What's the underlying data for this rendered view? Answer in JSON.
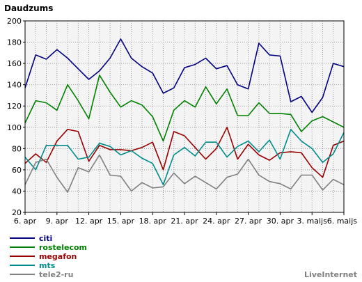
{
  "chart_data": {
    "type": "line",
    "title": "Daudzums",
    "ylim": [
      20,
      200
    ],
    "yticks": [
      20,
      40,
      60,
      80,
      100,
      120,
      140,
      160,
      180,
      200
    ],
    "xlim": [
      0,
      30
    ],
    "xticks": [
      {
        "i": 0,
        "label": "6. apr"
      },
      {
        "i": 3,
        "label": "9. apr"
      },
      {
        "i": 6,
        "label": "12. apr"
      },
      {
        "i": 9,
        "label": "15. apr"
      },
      {
        "i": 12,
        "label": "18. apr"
      },
      {
        "i": 15,
        "label": "21. apr"
      },
      {
        "i": 18,
        "label": "24. apr"
      },
      {
        "i": 21,
        "label": "27. apr"
      },
      {
        "i": 24,
        "label": "30. apr"
      },
      {
        "i": 27,
        "label": "3. maijs"
      },
      {
        "i": 30,
        "label": "6. maijs"
      }
    ],
    "grid": true,
    "legend_position": "bottom-left",
    "credit": "LiveInternet",
    "series": [
      {
        "name": "citi",
        "color": "#000080",
        "values": [
          137,
          168,
          164,
          173,
          165,
          155,
          145,
          153,
          165,
          183,
          165,
          157,
          151,
          132,
          137,
          156,
          159,
          165,
          155,
          158,
          140,
          136,
          179,
          168,
          167,
          124,
          129,
          114,
          128,
          160,
          157
        ]
      },
      {
        "name": "rostelecom",
        "color": "#008000",
        "values": [
          104,
          125,
          123,
          116,
          140,
          125,
          108,
          149,
          133,
          119,
          125,
          121,
          110,
          87,
          116,
          125,
          119,
          138,
          122,
          136,
          111,
          111,
          123,
          113,
          113,
          112,
          96,
          106,
          110,
          105,
          100
        ]
      },
      {
        "name": "megafon",
        "color": "#990000",
        "values": [
          66,
          75,
          67,
          87,
          98,
          96,
          68,
          83,
          79,
          79,
          78,
          81,
          86,
          60,
          96,
          92,
          81,
          70,
          80,
          100,
          70,
          84,
          74,
          69,
          76,
          77,
          76,
          62,
          53,
          83,
          87
        ]
      },
      {
        "name": "mts",
        "color": "#008b8b",
        "values": [
          72,
          60,
          83,
          83,
          83,
          70,
          72,
          85,
          82,
          74,
          78,
          71,
          66,
          46,
          74,
          81,
          73,
          86,
          86,
          72,
          82,
          87,
          77,
          88,
          70,
          98,
          87,
          80,
          67,
          75,
          95
        ]
      },
      {
        "name": "tele2-ru",
        "color": "#808080",
        "values": [
          46,
          67,
          70,
          53,
          39,
          62,
          58,
          74,
          55,
          54,
          40,
          48,
          43,
          44,
          57,
          47,
          54,
          48,
          42,
          53,
          56,
          70,
          55,
          49,
          47,
          42,
          55,
          55,
          41,
          51,
          46
        ]
      }
    ]
  }
}
